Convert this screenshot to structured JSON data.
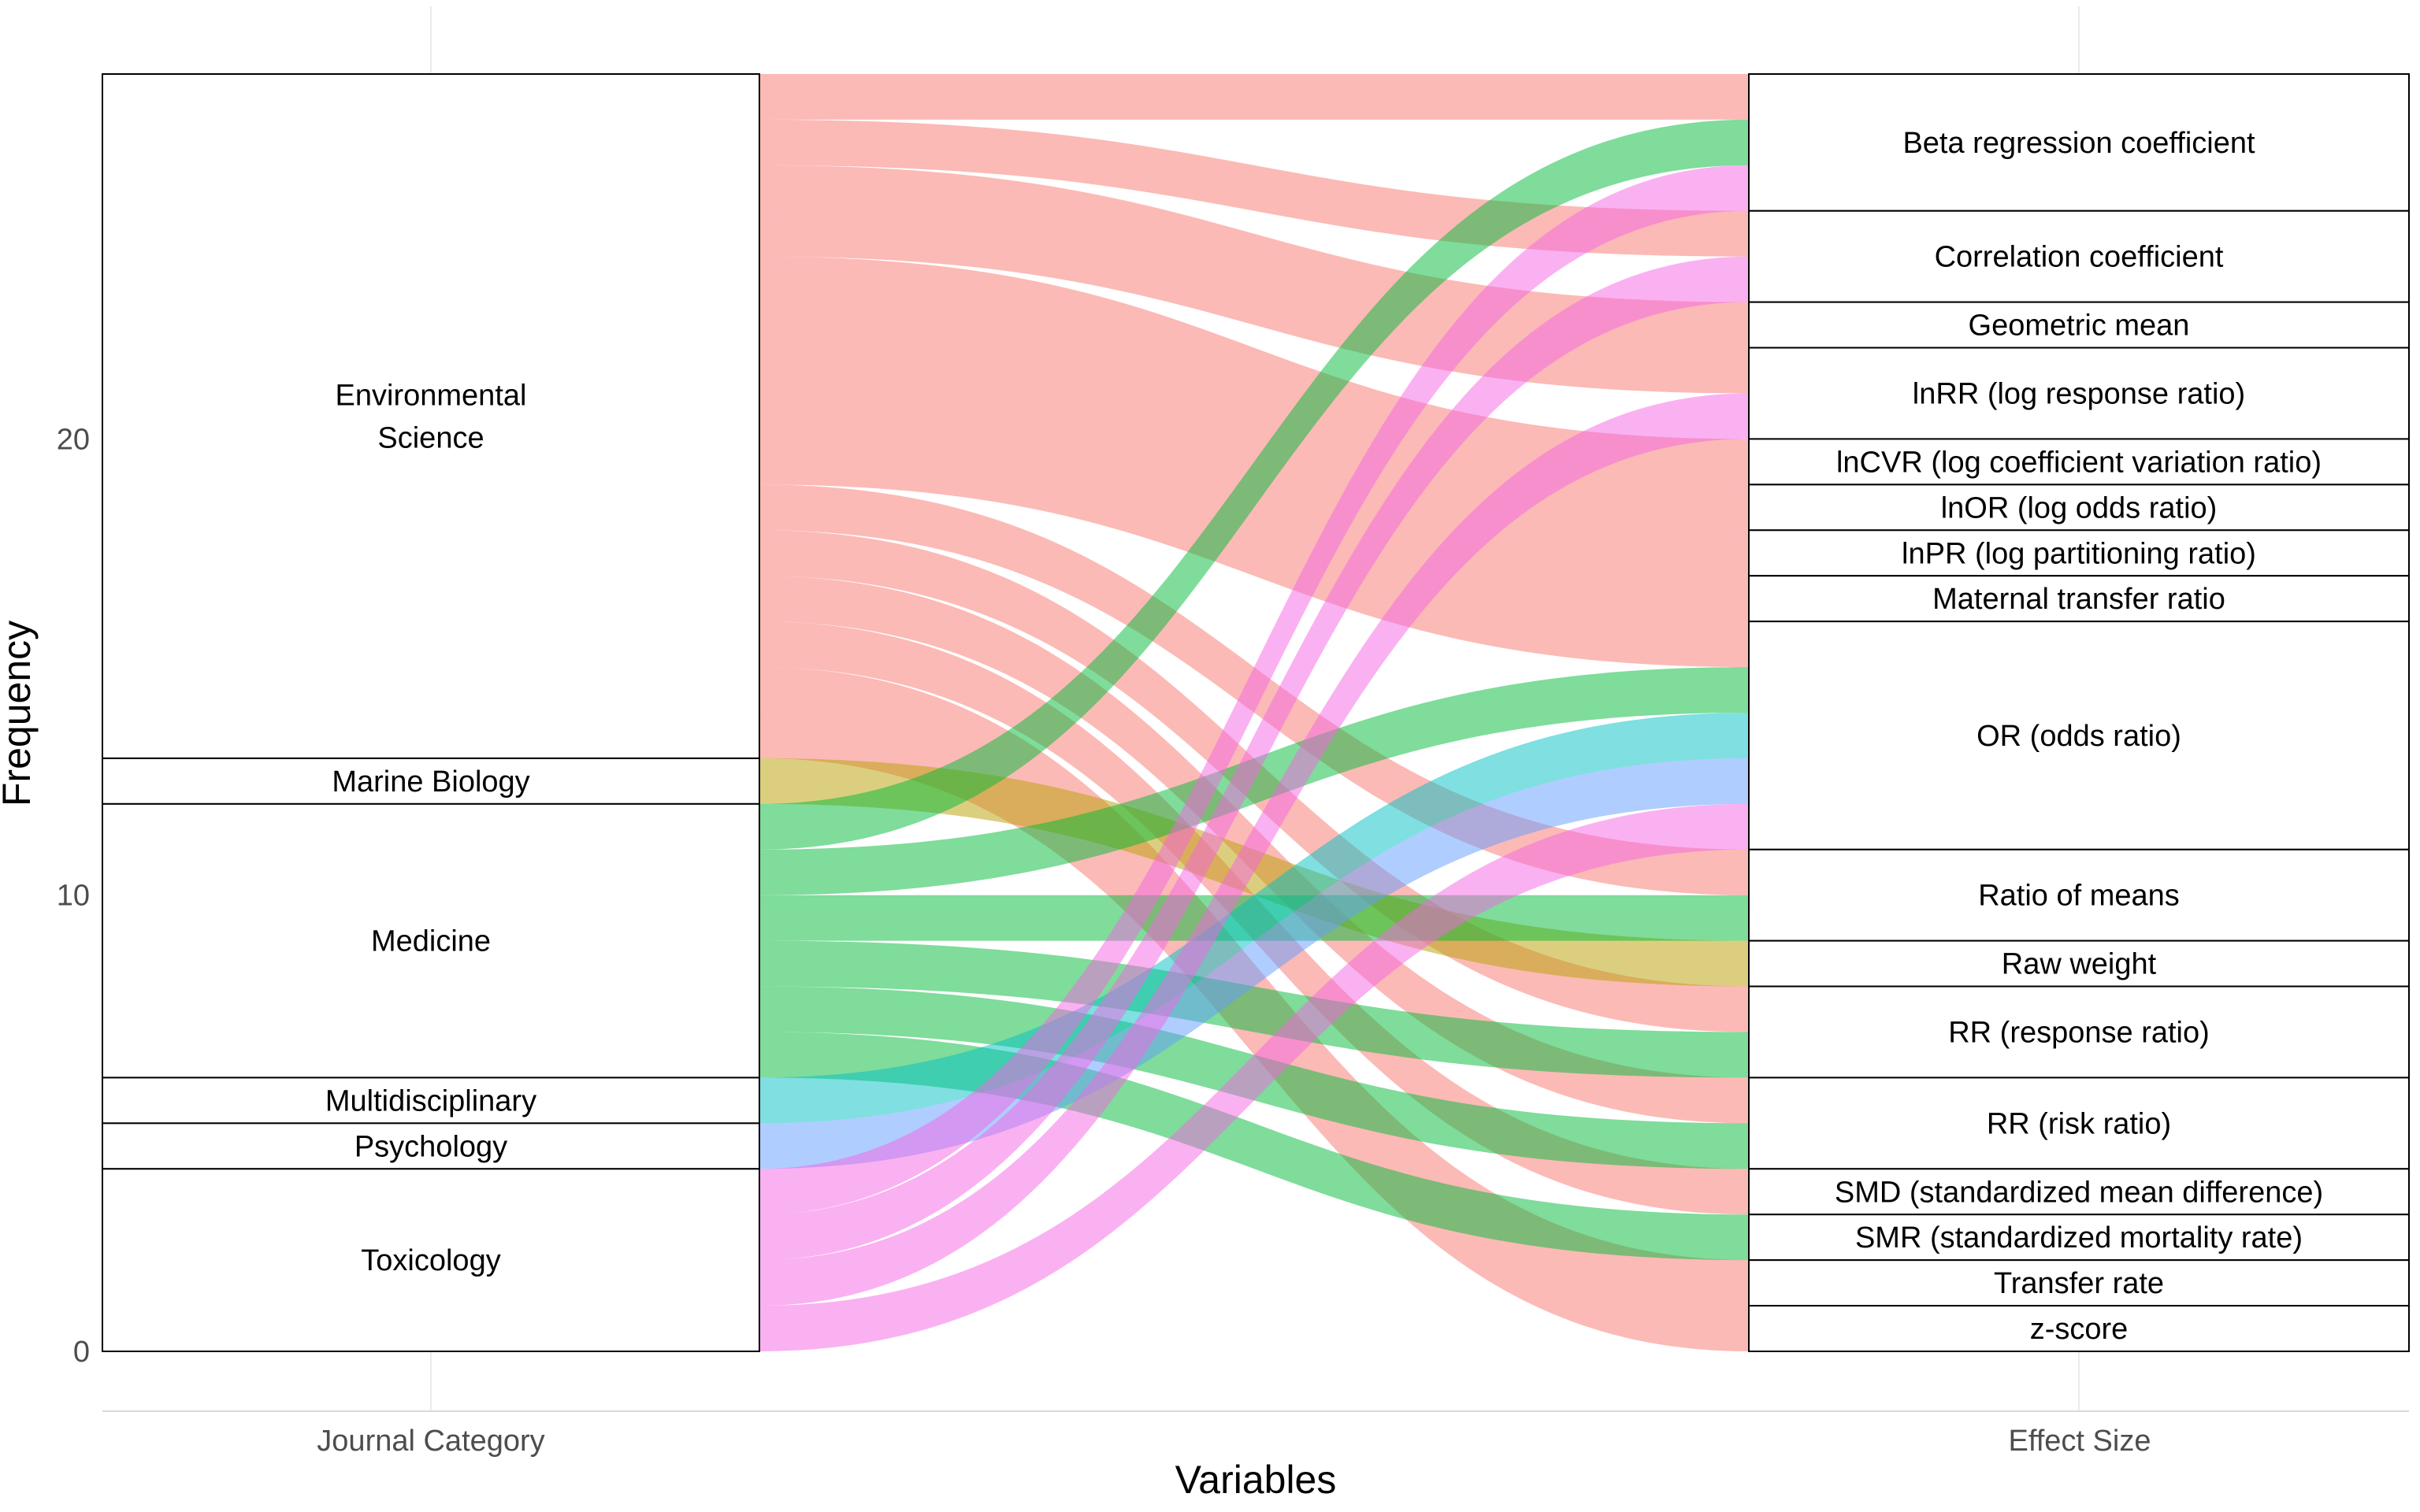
{
  "chart_data": {
    "type": "alluvial",
    "ylabel": "Frequency",
    "xlabel": "Variables",
    "x_axes": [
      "Journal Category",
      "Effect Size"
    ],
    "ylim": [
      0,
      28
    ],
    "y_ticks": [
      0,
      10,
      20
    ],
    "grid": true,
    "colors": {
      "Environmental Science": "#F8766D",
      "Marine Biology": "#B79F00",
      "Medicine": "#00BA38",
      "Multidisciplinary": "#00BFC4",
      "Psychology": "#619CFF",
      "Toxicology": "#F564E3"
    },
    "journal_categories": [
      {
        "name": "Environmental Science",
        "lines": [
          "Environmental",
          "Science"
        ],
        "count": 15
      },
      {
        "name": "Marine Biology",
        "lines": [
          "Marine Biology"
        ],
        "count": 1
      },
      {
        "name": "Medicine",
        "lines": [
          "Medicine"
        ],
        "count": 6
      },
      {
        "name": "Multidisciplinary",
        "lines": [
          "Multidisciplinary"
        ],
        "count": 1
      },
      {
        "name": "Psychology",
        "lines": [
          "Psychology"
        ],
        "count": 1
      },
      {
        "name": "Toxicology",
        "lines": [
          "Toxicology"
        ],
        "count": 4
      }
    ],
    "effect_sizes": [
      {
        "name": "Beta regression coefficient",
        "count": 3
      },
      {
        "name": "Correlation coefficient",
        "count": 2
      },
      {
        "name": "Geometric mean",
        "count": 1
      },
      {
        "name": "lnRR (log response ratio)",
        "count": 2
      },
      {
        "name": "lnCVR (log coefficient variation ratio)",
        "count": 1
      },
      {
        "name": "lnOR (log odds ratio)",
        "count": 1
      },
      {
        "name": "lnPR (log partitioning ratio)",
        "count": 1
      },
      {
        "name": "Maternal transfer ratio",
        "count": 1
      },
      {
        "name": "OR (odds ratio)",
        "count": 5
      },
      {
        "name": "Ratio of means",
        "count": 2
      },
      {
        "name": "Raw weight",
        "count": 1
      },
      {
        "name": "RR (response ratio)",
        "count": 2
      },
      {
        "name": "RR (risk ratio)",
        "count": 2
      },
      {
        "name": "SMD (standardized mean difference)",
        "count": 1
      },
      {
        "name": "SMR (standardized mortality rate)",
        "count": 1
      },
      {
        "name": "Transfer rate",
        "count": 1
      },
      {
        "name": "z-score",
        "count": 1
      }
    ],
    "flows": [
      {
        "from": "Environmental Science",
        "to": "Beta regression coefficient",
        "value": 1
      },
      {
        "from": "Environmental Science",
        "to": "Correlation coefficient",
        "value": 1
      },
      {
        "from": "Environmental Science",
        "to": "Geometric mean",
        "value": 1
      },
      {
        "from": "Environmental Science",
        "to": "lnRR (log response ratio)",
        "value": 1
      },
      {
        "from": "Environmental Science",
        "to": "lnCVR (log coefficient variation ratio)",
        "value": 1
      },
      {
        "from": "Environmental Science",
        "to": "lnOR (log odds ratio)",
        "value": 1
      },
      {
        "from": "Environmental Science",
        "to": "lnPR (log partitioning ratio)",
        "value": 1
      },
      {
        "from": "Environmental Science",
        "to": "Maternal transfer ratio",
        "value": 1
      },
      {
        "from": "Environmental Science",
        "to": "OR (odds ratio)",
        "value": 1
      },
      {
        "from": "Environmental Science",
        "to": "Ratio of means",
        "value": 1
      },
      {
        "from": "Environmental Science",
        "to": "RR (response ratio)",
        "value": 1
      },
      {
        "from": "Environmental Science",
        "to": "RR (risk ratio)",
        "value": 1
      },
      {
        "from": "Environmental Science",
        "to": "SMD (standardized mean difference)",
        "value": 1
      },
      {
        "from": "Environmental Science",
        "to": "Transfer rate",
        "value": 1
      },
      {
        "from": "Environmental Science",
        "to": "z-score",
        "value": 1
      },
      {
        "from": "Marine Biology",
        "to": "Raw weight",
        "value": 1
      },
      {
        "from": "Medicine",
        "to": "Beta regression coefficient",
        "value": 1
      },
      {
        "from": "Medicine",
        "to": "OR (odds ratio)",
        "value": 1
      },
      {
        "from": "Medicine",
        "to": "Ratio of means",
        "value": 1
      },
      {
        "from": "Medicine",
        "to": "RR (response ratio)",
        "value": 1
      },
      {
        "from": "Medicine",
        "to": "RR (risk ratio)",
        "value": 1
      },
      {
        "from": "Medicine",
        "to": "SMR (standardized mortality rate)",
        "value": 1
      },
      {
        "from": "Multidisciplinary",
        "to": "OR (odds ratio)",
        "value": 1
      },
      {
        "from": "Psychology",
        "to": "OR (odds ratio)",
        "value": 1
      },
      {
        "from": "Toxicology",
        "to": "Beta regression coefficient",
        "value": 1
      },
      {
        "from": "Toxicology",
        "to": "Correlation coefficient",
        "value": 1
      },
      {
        "from": "Toxicology",
        "to": "lnRR (log response ratio)",
        "value": 1
      },
      {
        "from": "Toxicology",
        "to": "OR (odds ratio)",
        "value": 1
      }
    ]
  }
}
